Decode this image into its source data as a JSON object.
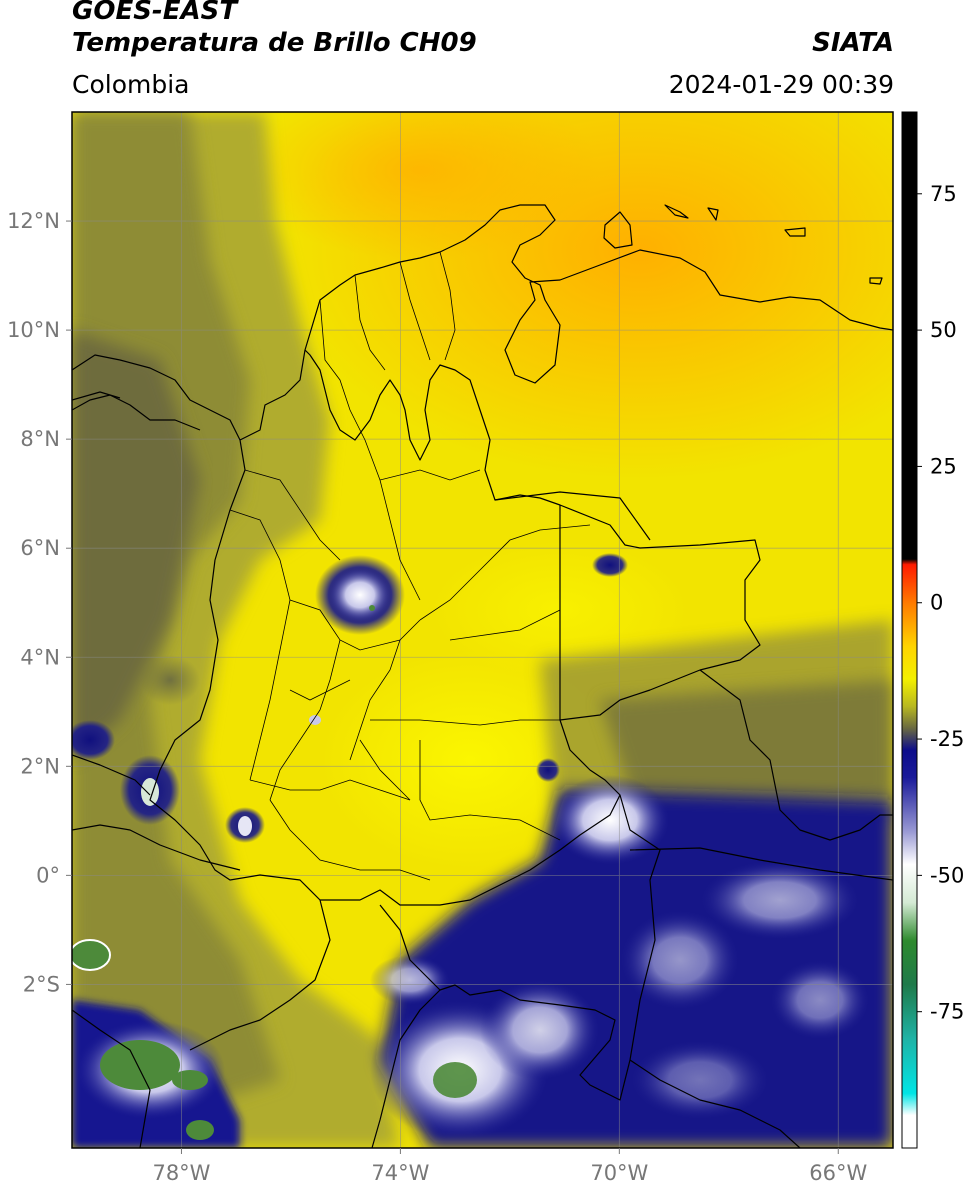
{
  "header": {
    "satellite": "GOES-EAST",
    "product": "Temperatura de Brillo CH09",
    "region": "Colombia",
    "source": "SIATA",
    "datetime": "2024-01-29 00:39"
  },
  "map": {
    "lon_range": [
      -80,
      -65
    ],
    "lat_range": [
      -5,
      14
    ],
    "lat_ticks": [
      {
        "label": "12°N",
        "lat": 12
      },
      {
        "label": "10°N",
        "lat": 10
      },
      {
        "label": "8°N",
        "lat": 8
      },
      {
        "label": "6°N",
        "lat": 6
      },
      {
        "label": "4°N",
        "lat": 4
      },
      {
        "label": "2°N",
        "lat": 2
      },
      {
        "label": "0°",
        "lat": 0
      },
      {
        "label": "2°S",
        "lat": -2
      }
    ],
    "lon_ticks": [
      {
        "label": "78°W",
        "lon": -78
      },
      {
        "label": "74°W",
        "lon": -74
      },
      {
        "label": "70°W",
        "lon": -70
      },
      {
        "label": "66°W",
        "lon": -66
      }
    ]
  },
  "colorbar": {
    "range": [
      -100,
      90
    ],
    "ticks": [
      {
        "label": "75",
        "value": 75
      },
      {
        "label": "50",
        "value": 50
      },
      {
        "label": "25",
        "value": 25
      },
      {
        "label": "0",
        "value": 0
      },
      {
        "label": "-25",
        "value": -25
      },
      {
        "label": "-50",
        "value": -50
      },
      {
        "label": "-75",
        "value": -75
      }
    ],
    "stops": [
      {
        "value": 90,
        "color": "#000000"
      },
      {
        "value": 8,
        "color": "#000000"
      },
      {
        "value": 7,
        "color": "#ff1a00"
      },
      {
        "value": 0,
        "color": "#ff7a00"
      },
      {
        "value": -8,
        "color": "#ffd400"
      },
      {
        "value": -14,
        "color": "#f3f000"
      },
      {
        "value": -19,
        "color": "#b8b820"
      },
      {
        "value": -23,
        "color": "#6a6a40"
      },
      {
        "value": -27,
        "color": "#0d0d8a"
      },
      {
        "value": -32,
        "color": "#1a1a9a"
      },
      {
        "value": -42,
        "color": "#9a9ad4"
      },
      {
        "value": -48,
        "color": "#ffffff"
      },
      {
        "value": -55,
        "color": "#d4ead4"
      },
      {
        "value": -62,
        "color": "#2e8a2e"
      },
      {
        "value": -70,
        "color": "#1f7a4a"
      },
      {
        "value": -80,
        "color": "#1fb3a6"
      },
      {
        "value": -90,
        "color": "#00e5e5"
      },
      {
        "value": -94,
        "color": "#ffffff"
      },
      {
        "value": -100,
        "color": "#ffffff"
      }
    ]
  }
}
